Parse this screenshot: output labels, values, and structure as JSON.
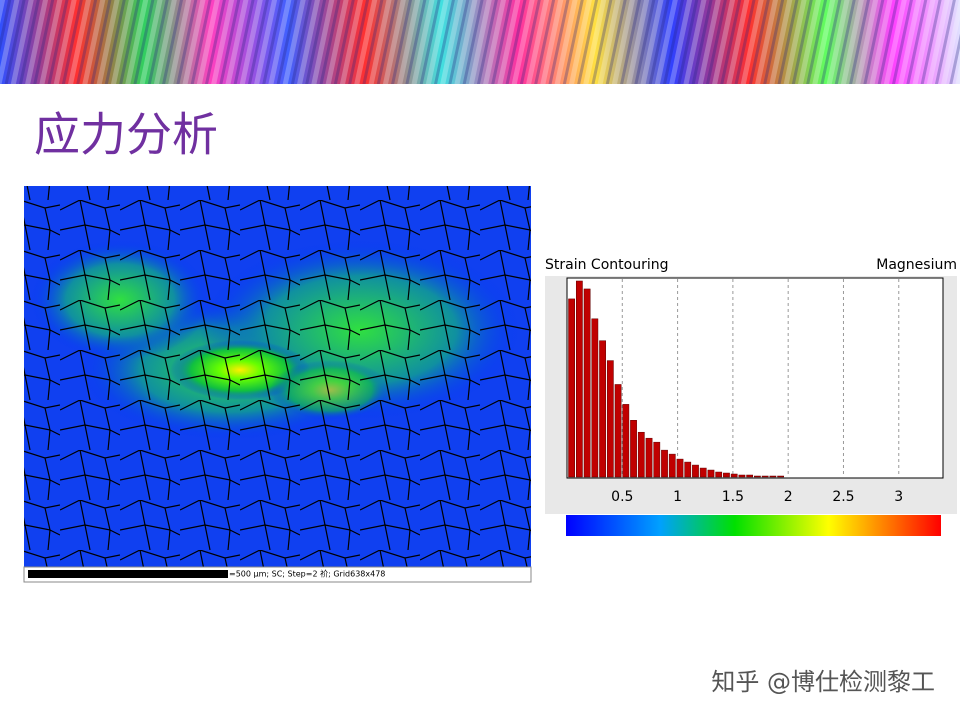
{
  "slide": {
    "title": "应力分析",
    "scale_caption": "=500 µm; SC; Step=2 祄; Grid638x478",
    "watermark": "知乎 @博仕检测黎工"
  },
  "chart_data": {
    "type": "histogram",
    "title": "Strain Contouring",
    "subtitle": "Magnesium",
    "bins": [
      0,
      0.07,
      0.14,
      0.21,
      0.28,
      0.35,
      0.42,
      0.49,
      0.56,
      0.63,
      0.7,
      0.77,
      0.84,
      0.91,
      0.98,
      1.05,
      1.12,
      1.19,
      1.26,
      1.33,
      1.4,
      1.47,
      1.54,
      1.61,
      1.68,
      1.75,
      1.82,
      1.89,
      1.96
    ],
    "values": [
      179,
      197,
      189,
      159,
      137,
      117,
      93,
      73,
      57,
      45,
      39,
      35,
      27,
      23,
      18,
      15,
      12,
      9,
      7,
      5,
      4,
      3,
      2,
      2,
      1,
      1,
      1,
      1
    ],
    "color": "#c00000",
    "xlim": [
      0,
      3.4
    ],
    "xticks": [
      0.5,
      1,
      1.5,
      2,
      2.5,
      3
    ],
    "ylim": [
      0,
      200
    ],
    "grid": true
  }
}
